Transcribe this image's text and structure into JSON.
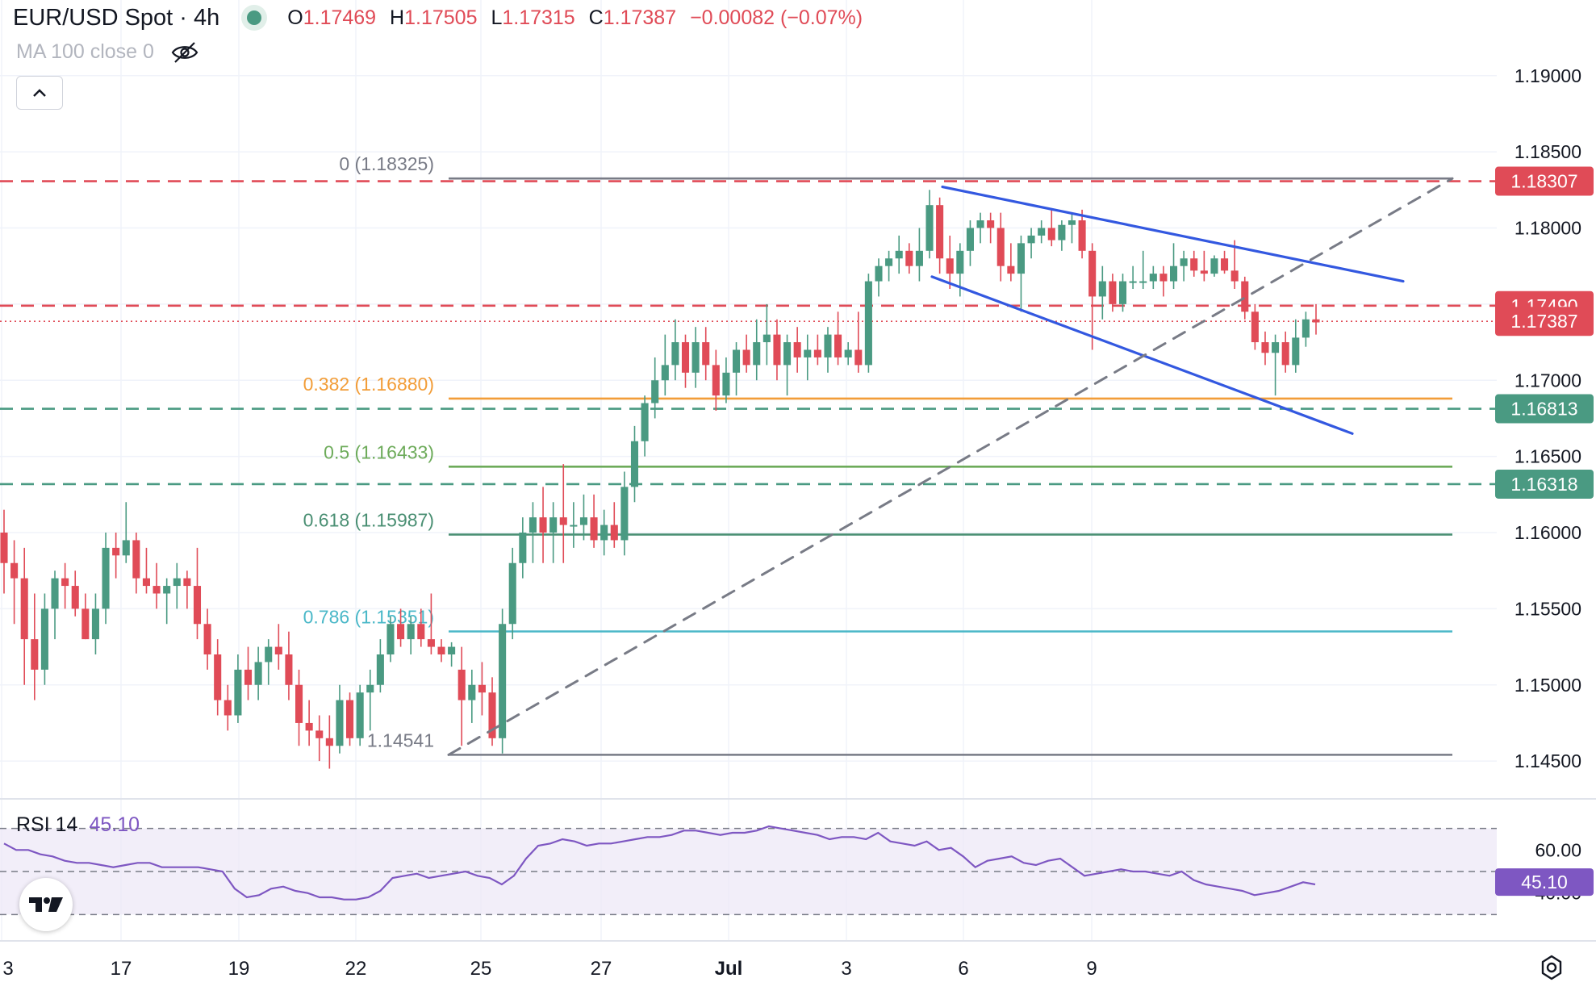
{
  "header": {
    "symbol": "EUR/USD Spot · 4h",
    "status_color": "#4a9a82",
    "open_label": "O",
    "open_value": "1.17469",
    "high_label": "H",
    "high_value": "1.17505",
    "low_label": "L",
    "low_value": "1.17315",
    "close_label": "C",
    "close_value": "1.17387",
    "change_value": "−0.00082 (−0.07%)"
  },
  "indicator": {
    "ma_label": "MA 100 close 0",
    "visibility_icon": "eye-off-icon",
    "collapse_icon": "chevron-up-icon"
  },
  "rsi_panel": {
    "label": "RSI 14",
    "value": "45.10",
    "line_color": "#7e57c2",
    "upper_band": 70,
    "lower_band": 30,
    "mid_band": 50
  },
  "colors": {
    "up": "#4a9a82",
    "down": "#e04b57",
    "trendline": "#3358e0",
    "fib_0382": "#f29d38",
    "fib_05": "#6dab5a",
    "fib_0618": "#4a8f73",
    "fib_0786": "#4bb8c8",
    "fib_end": "#787b86"
  },
  "chart_data": {
    "type": "candlestick",
    "title": "EUR/USD Spot · 4h",
    "ylim": [
      1.144,
      1.192
    ],
    "y_ticks": [
      "1.19000",
      "1.18500",
      "1.18000",
      "1.17500",
      "1.17000",
      "1.16500",
      "1.16000",
      "1.15500",
      "1.15000",
      "1.14500"
    ],
    "x_ticks": [
      "3",
      "17",
      "19",
      "22",
      "25",
      "27",
      "Jul",
      "3",
      "6",
      "9"
    ],
    "grid": true,
    "price_labels": [
      {
        "text": "1.18307",
        "value": 1.18307,
        "color": "#e04b57"
      },
      {
        "text": "1.17490",
        "value": 1.1749,
        "color": "#e04b57"
      },
      {
        "text": "1.17387",
        "value": 1.17387,
        "color": "#e04b57"
      },
      {
        "text": "1.16813",
        "value": 1.16813,
        "color": "#4a9a82"
      },
      {
        "text": "1.16318",
        "value": 1.16318,
        "color": "#4a9a82"
      }
    ],
    "horizontal_levels": [
      {
        "value": 1.18307,
        "style": "dashed",
        "color": "#e04b57"
      },
      {
        "value": 1.1749,
        "style": "dashed",
        "color": "#e04b57"
      },
      {
        "value": 1.17387,
        "style": "dotted",
        "color": "#e04b57"
      },
      {
        "value": 1.16813,
        "style": "dashed",
        "color": "#4a9a82"
      },
      {
        "value": 1.16318,
        "style": "dashed",
        "color": "#4a9a82"
      }
    ],
    "fibonacci": [
      {
        "label": "0 (1.18325)",
        "value": 1.18325,
        "color": "#787b86"
      },
      {
        "label": "0.382 (1.16880)",
        "value": 1.1688,
        "color": "#f29d38"
      },
      {
        "label": "0.5 (1.16433)",
        "value": 1.16433,
        "color": "#6dab5a"
      },
      {
        "label": "0.618 (1.15987)",
        "value": 1.15987,
        "color": "#4a8f73"
      },
      {
        "label": "0.786 (1.15351)",
        "value": 1.15351,
        "color": "#4bb8c8"
      },
      {
        "label": "1.14541",
        "value": 1.14541,
        "color": "#787b86"
      }
    ],
    "candles": [
      [
        1.16,
        1.1615,
        1.156,
        1.158
      ],
      [
        1.158,
        1.1595,
        1.154,
        1.157
      ],
      [
        1.157,
        1.159,
        1.15,
        1.153
      ],
      [
        1.153,
        1.156,
        1.149,
        1.151
      ],
      [
        1.151,
        1.156,
        1.15,
        1.155
      ],
      [
        1.155,
        1.1575,
        1.153,
        1.157
      ],
      [
        1.157,
        1.158,
        1.155,
        1.1565
      ],
      [
        1.1565,
        1.1575,
        1.1545,
        1.155
      ],
      [
        1.155,
        1.156,
        1.153,
        1.153
      ],
      [
        1.153,
        1.156,
        1.152,
        1.155
      ],
      [
        1.155,
        1.16,
        1.154,
        1.159
      ],
      [
        1.159,
        1.16,
        1.157,
        1.1585
      ],
      [
        1.1585,
        1.162,
        1.158,
        1.1595
      ],
      [
        1.1595,
        1.16,
        1.156,
        1.157
      ],
      [
        1.157,
        1.159,
        1.156,
        1.1565
      ],
      [
        1.1565,
        1.158,
        1.155,
        1.156
      ],
      [
        1.156,
        1.157,
        1.154,
        1.1565
      ],
      [
        1.1565,
        1.158,
        1.155,
        1.157
      ],
      [
        1.157,
        1.1575,
        1.155,
        1.1565
      ],
      [
        1.1565,
        1.159,
        1.153,
        1.154
      ],
      [
        1.154,
        1.155,
        1.151,
        1.152
      ],
      [
        1.152,
        1.153,
        1.148,
        1.149
      ],
      [
        1.149,
        1.15,
        1.147,
        1.148
      ],
      [
        1.148,
        1.152,
        1.1475,
        1.151
      ],
      [
        1.151,
        1.1525,
        1.149,
        1.15
      ],
      [
        1.15,
        1.1525,
        1.149,
        1.1515
      ],
      [
        1.1515,
        1.153,
        1.15,
        1.1525
      ],
      [
        1.1525,
        1.154,
        1.151,
        1.152
      ],
      [
        1.152,
        1.1535,
        1.149,
        1.15
      ],
      [
        1.15,
        1.151,
        1.146,
        1.1475
      ],
      [
        1.1475,
        1.149,
        1.146,
        1.147
      ],
      [
        1.147,
        1.148,
        1.145,
        1.1465
      ],
      [
        1.1465,
        1.148,
        1.1445,
        1.146
      ],
      [
        1.146,
        1.15,
        1.1455,
        1.149
      ],
      [
        1.149,
        1.1495,
        1.146,
        1.1465
      ],
      [
        1.1465,
        1.15,
        1.146,
        1.1495
      ],
      [
        1.1495,
        1.151,
        1.147,
        1.15
      ],
      [
        1.15,
        1.153,
        1.1495,
        1.152
      ],
      [
        1.152,
        1.1545,
        1.1515,
        1.154
      ],
      [
        1.154,
        1.155,
        1.1525,
        1.153
      ],
      [
        1.153,
        1.1545,
        1.152,
        1.154
      ],
      [
        1.154,
        1.155,
        1.1525,
        1.153
      ],
      [
        1.153,
        1.156,
        1.152,
        1.1525
      ],
      [
        1.1525,
        1.153,
        1.1515,
        1.152
      ],
      [
        1.152,
        1.1528,
        1.1512,
        1.1525
      ],
      [
        1.151,
        1.1525,
        1.146,
        1.149
      ],
      [
        1.149,
        1.151,
        1.1475,
        1.15
      ],
      [
        1.15,
        1.1515,
        1.148,
        1.1495
      ],
      [
        1.1495,
        1.1505,
        1.146,
        1.1465
      ],
      [
        1.1465,
        1.155,
        1.1455,
        1.154
      ],
      [
        1.154,
        1.159,
        1.153,
        1.158
      ],
      [
        1.158,
        1.161,
        1.157,
        1.16
      ],
      [
        1.16,
        1.162,
        1.158,
        1.161
      ],
      [
        1.161,
        1.163,
        1.158,
        1.16
      ],
      [
        1.16,
        1.162,
        1.158,
        1.161
      ],
      [
        1.161,
        1.1645,
        1.158,
        1.1605
      ],
      [
        1.1605,
        1.162,
        1.159,
        1.1605
      ],
      [
        1.1605,
        1.1625,
        1.1595,
        1.161
      ],
      [
        1.161,
        1.1625,
        1.159,
        1.1595
      ],
      [
        1.1595,
        1.1615,
        1.1585,
        1.1605
      ],
      [
        1.1605,
        1.162,
        1.159,
        1.1595
      ],
      [
        1.1595,
        1.164,
        1.1585,
        1.163
      ],
      [
        1.163,
        1.167,
        1.162,
        1.166
      ],
      [
        1.166,
        1.169,
        1.165,
        1.1685
      ],
      [
        1.1685,
        1.1715,
        1.1675,
        1.17
      ],
      [
        1.17,
        1.173,
        1.169,
        1.171
      ],
      [
        1.171,
        1.174,
        1.17,
        1.1725
      ],
      [
        1.1725,
        1.173,
        1.1695,
        1.1705
      ],
      [
        1.1705,
        1.1735,
        1.1695,
        1.1725
      ],
      [
        1.1725,
        1.1735,
        1.17,
        1.171
      ],
      [
        1.171,
        1.172,
        1.168,
        1.169
      ],
      [
        1.169,
        1.1715,
        1.1685,
        1.1705
      ],
      [
        1.1705,
        1.1725,
        1.169,
        1.172
      ],
      [
        1.172,
        1.173,
        1.1705,
        1.171
      ],
      [
        1.171,
        1.174,
        1.17,
        1.1725
      ],
      [
        1.1725,
        1.175,
        1.171,
        1.173
      ],
      [
        1.173,
        1.174,
        1.17,
        1.171
      ],
      [
        1.171,
        1.173,
        1.169,
        1.1725
      ],
      [
        1.1725,
        1.1735,
        1.1705,
        1.1715
      ],
      [
        1.1715,
        1.173,
        1.17,
        1.172
      ],
      [
        1.172,
        1.173,
        1.171,
        1.1715
      ],
      [
        1.1715,
        1.1735,
        1.1705,
        1.173
      ],
      [
        1.173,
        1.1745,
        1.171,
        1.1715
      ],
      [
        1.1715,
        1.1725,
        1.171,
        1.172
      ],
      [
        1.172,
        1.1745,
        1.1705,
        1.171
      ],
      [
        1.171,
        1.177,
        1.1705,
        1.1765
      ],
      [
        1.1765,
        1.178,
        1.1755,
        1.1775
      ],
      [
        1.1775,
        1.1785,
        1.1765,
        1.178
      ],
      [
        1.178,
        1.1795,
        1.177,
        1.1785
      ],
      [
        1.1785,
        1.179,
        1.177,
        1.1775
      ],
      [
        1.1775,
        1.18,
        1.1765,
        1.1785
      ],
      [
        1.1785,
        1.1825,
        1.178,
        1.1815
      ],
      [
        1.1815,
        1.182,
        1.177,
        1.178
      ],
      [
        1.178,
        1.1795,
        1.176,
        1.177
      ],
      [
        1.177,
        1.179,
        1.1755,
        1.1785
      ],
      [
        1.1785,
        1.1805,
        1.1775,
        1.18
      ],
      [
        1.18,
        1.181,
        1.179,
        1.1805
      ],
      [
        1.1805,
        1.181,
        1.179,
        1.18
      ],
      [
        1.18,
        1.181,
        1.1765,
        1.1775
      ],
      [
        1.1775,
        1.179,
        1.1765,
        1.177
      ],
      [
        1.177,
        1.1795,
        1.1745,
        1.179
      ],
      [
        1.179,
        1.18,
        1.178,
        1.1795
      ],
      [
        1.1795,
        1.1805,
        1.179,
        1.18
      ],
      [
        1.18,
        1.1812,
        1.1788,
        1.1792
      ],
      [
        1.1792,
        1.1805,
        1.1785,
        1.1802
      ],
      [
        1.1802,
        1.181,
        1.179,
        1.1805
      ],
      [
        1.1805,
        1.1812,
        1.178,
        1.1785
      ],
      [
        1.1785,
        1.179,
        1.172,
        1.1755
      ],
      [
        1.1755,
        1.1775,
        1.174,
        1.1765
      ],
      [
        1.1765,
        1.177,
        1.1745,
        1.175
      ],
      [
        1.175,
        1.177,
        1.1745,
        1.1765
      ],
      [
        1.1765,
        1.1775,
        1.176,
        1.1765
      ],
      [
        1.1765,
        1.1785,
        1.176,
        1.1765
      ],
      [
        1.1765,
        1.1775,
        1.176,
        1.177
      ],
      [
        1.177,
        1.1775,
        1.1755,
        1.1765
      ],
      [
        1.1765,
        1.179,
        1.176,
        1.1775
      ],
      [
        1.1775,
        1.1785,
        1.1765,
        1.178
      ],
      [
        1.178,
        1.1785,
        1.1768,
        1.1772
      ],
      [
        1.1772,
        1.1785,
        1.1765,
        1.177
      ],
      [
        1.177,
        1.1782,
        1.1768,
        1.178
      ],
      [
        1.178,
        1.1785,
        1.177,
        1.1772
      ],
      [
        1.1772,
        1.1792,
        1.176,
        1.1765
      ],
      [
        1.1765,
        1.1768,
        1.174,
        1.1745
      ],
      [
        1.1745,
        1.175,
        1.172,
        1.1725
      ],
      [
        1.1725,
        1.1732,
        1.171,
        1.1718
      ],
      [
        1.1718,
        1.173,
        1.169,
        1.1725
      ],
      [
        1.1725,
        1.1732,
        1.1705,
        1.171
      ],
      [
        1.171,
        1.174,
        1.1705,
        1.1728
      ],
      [
        1.1728,
        1.1745,
        1.1722,
        1.174
      ],
      [
        1.174,
        1.175,
        1.173,
        1.1738
      ]
    ],
    "trendlines": [
      {
        "style": "solid",
        "color": "#3358e0",
        "from": {
          "x": "Jul 1",
          "y": 1.1827
        },
        "to": {
          "x": "Jul 8",
          "y": 1.1765
        }
      },
      {
        "style": "solid",
        "color": "#3358e0",
        "from": {
          "x": "Jun 30",
          "y": 1.1768
        },
        "to": {
          "x": "Jul 7",
          "y": 1.1665
        }
      },
      {
        "style": "dashed",
        "color": "#787b86",
        "from": {
          "x": "Jun 22",
          "y": 1.14541
        },
        "to": {
          "x": "Jul 10",
          "y": 1.18325
        }
      }
    ],
    "rsi": {
      "name": "RSI 14",
      "current": 45.1,
      "ylim": [
        20,
        80
      ],
      "y_ticks": [
        "60.00",
        "40.00"
      ],
      "values": [
        63,
        60,
        60,
        58,
        57,
        55,
        54,
        54,
        53,
        52,
        53,
        54,
        54,
        52,
        52,
        52,
        52,
        51,
        50,
        42,
        38,
        39,
        42,
        43,
        41,
        40,
        38,
        38,
        37,
        37,
        38,
        41,
        47,
        48,
        49,
        47,
        48,
        49,
        50,
        48,
        47,
        44,
        48,
        56,
        62,
        63,
        65,
        64,
        62,
        63,
        63,
        64,
        65,
        66,
        66,
        67,
        69,
        69,
        68,
        67,
        68,
        68,
        69,
        71,
        70,
        69,
        68,
        67,
        65,
        66,
        66,
        65,
        68,
        64,
        63,
        62,
        64,
        60,
        61,
        57,
        52,
        55,
        56,
        57,
        54,
        53,
        55,
        56,
        52,
        48,
        49,
        50,
        51,
        50,
        50,
        49,
        48,
        50,
        46,
        44,
        43,
        42,
        41,
        39,
        40,
        41,
        43,
        45,
        44
      ]
    }
  }
}
